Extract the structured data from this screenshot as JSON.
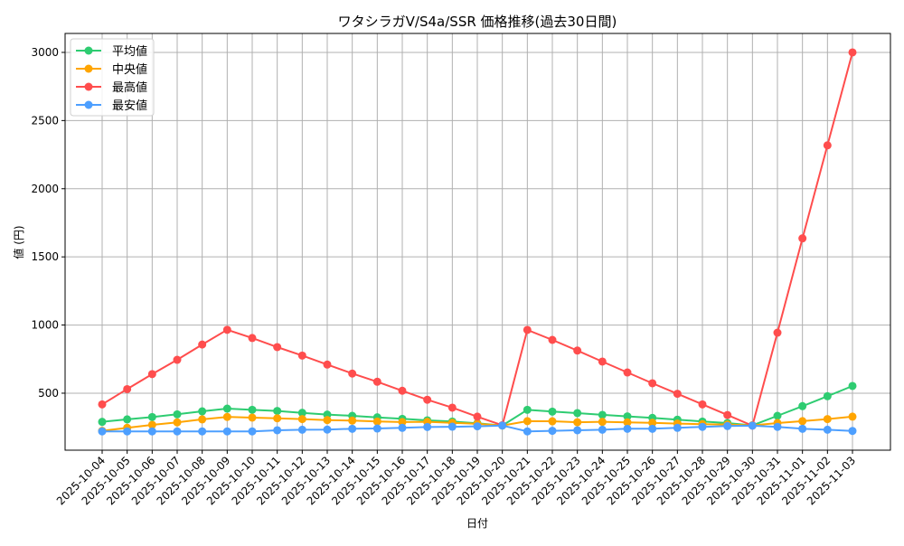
{
  "chart_data": {
    "type": "line",
    "title": "ワタシラガV/S4a/SSR 価格推移(過去30日間)",
    "xlabel": "日付",
    "ylabel": "値 (円)",
    "ylim": [
      82,
      3139
    ],
    "yticks": [
      500,
      1000,
      1500,
      2000,
      2500,
      3000
    ],
    "grid": true,
    "legend_position": "upper left",
    "categories": [
      "2025-10-04",
      "2025-10-05",
      "2025-10-06",
      "2025-10-07",
      "2025-10-08",
      "2025-10-09",
      "2025-10-10",
      "2025-10-11",
      "2025-10-12",
      "2025-10-13",
      "2025-10-14",
      "2025-10-15",
      "2025-10-16",
      "2025-10-17",
      "2025-10-18",
      "2025-10-19",
      "2025-10-20",
      "2025-10-21",
      "2025-10-22",
      "2025-10-23",
      "2025-10-24",
      "2025-10-25",
      "2025-10-26",
      "2025-10-27",
      "2025-10-28",
      "2025-10-29",
      "2025-10-30",
      "2025-10-31",
      "2025-11-01",
      "2025-11-02",
      "2025-11-03"
    ],
    "series": [
      {
        "name": "平均値",
        "color": "#2ecc71",
        "values": [
          290,
          308,
          325,
          345,
          367,
          387,
          378,
          370,
          356,
          343,
          334,
          323,
          312,
          301,
          292,
          279,
          263,
          378,
          365,
          354,
          341,
          330,
          319,
          306,
          292,
          281,
          264,
          334,
          405,
          478,
          553
        ]
      },
      {
        "name": "中央値",
        "color": "#ffa500",
        "values": [
          224,
          246,
          268,
          286,
          308,
          326,
          321,
          316,
          310,
          303,
          299,
          292,
          288,
          290,
          283,
          275,
          263,
          295,
          294,
          287,
          290,
          286,
          283,
          277,
          273,
          270,
          264,
          281,
          295,
          310,
          328
        ]
      },
      {
        "name": "最高値",
        "color": "#ff4d4d",
        "values": [
          418,
          530,
          640,
          745,
          857,
          965,
          905,
          838,
          776,
          710,
          644,
          584,
          518,
          452,
          394,
          328,
          265,
          964,
          891,
          813,
          732,
          652,
          573,
          496,
          418,
          340,
          262,
          944,
          1636,
          2318,
          3000
        ]
      },
      {
        "name": "最安値",
        "color": "#4d9fff",
        "values": [
          220,
          220,
          220,
          220,
          220,
          220,
          220,
          228,
          232,
          233,
          239,
          241,
          246,
          252,
          254,
          257,
          263,
          220,
          224,
          228,
          232,
          239,
          239,
          246,
          253,
          259,
          262,
          253,
          239,
          232,
          223
        ]
      }
    ]
  }
}
